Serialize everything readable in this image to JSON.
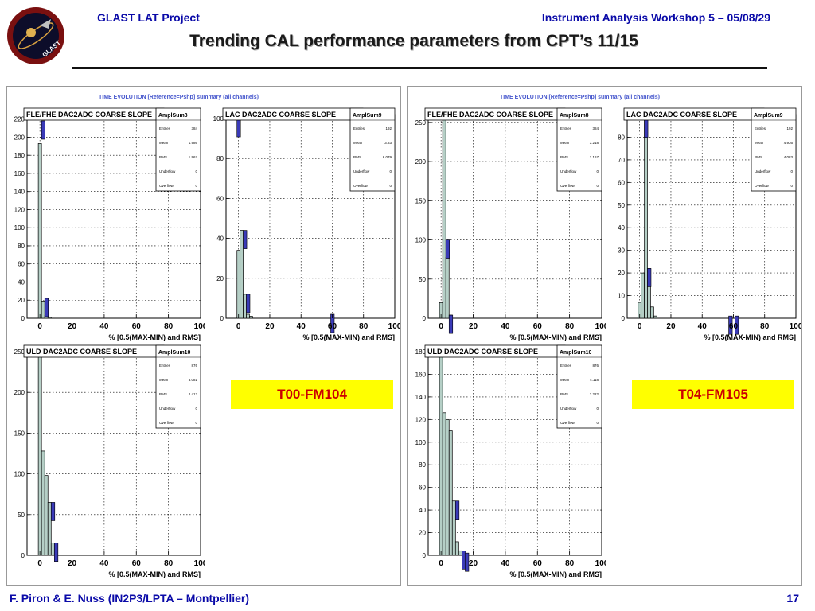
{
  "header": {
    "project": "GLAST LAT Project",
    "workshop": "Instrument Analysis Workshop 5 – 05/08/29",
    "title": "Trending CAL performance parameters from CPT’s 11/15"
  },
  "logo": {
    "name": "glast-logo",
    "text": "GLAST"
  },
  "footer": {
    "authors": "F. Piron & E. Nuss  (IN2P3/LPTA – Montpellier)",
    "page": "17"
  },
  "panels": [
    {
      "pad_title": "TIME EVOLUTION [Reference=Pshp] summary (all channels)"
    },
    {
      "pad_title": "TIME EVOLUTION [Reference=Pshp] summary (all channels)"
    }
  ],
  "labels": [
    "T00-FM104",
    "T04-FM105"
  ],
  "colors": {
    "fill": "#b5cfc6",
    "marker": "#3a3ab8",
    "title": "#0a0aa8",
    "label_bg": "#ffff00",
    "label_text": "#cc0000"
  },
  "chart_data": [
    {
      "type": "bar",
      "title": "FLE/FHE DAC2ADC COARSE SLOPE",
      "xlabel": "% [0.5(MAX-MIN) and RMS]",
      "xlim": [
        -8,
        100
      ],
      "ylim": [
        0,
        225
      ],
      "xticks": [
        0,
        20,
        40,
        60,
        80,
        100
      ],
      "yticks": [
        0,
        20,
        40,
        60,
        80,
        100,
        120,
        140,
        160,
        180,
        200,
        220
      ],
      "bin_width": 2,
      "bin_start": -1,
      "series": [
        {
          "values": [
            193,
            19,
            3,
            1
          ]
        }
      ],
      "markers": [
        {
          "x": 2,
          "y": 218
        },
        {
          "x": 4,
          "y": 22
        }
      ],
      "stats": {
        "name": "AmplSum8",
        "rows": [
          [
            "Entries",
            "384"
          ],
          [
            "Mean",
            "1.986"
          ],
          [
            "RMS",
            "1.967"
          ],
          [
            "Underflow",
            "0"
          ],
          [
            "Overflow",
            "0"
          ]
        ]
      },
      "grid": true
    },
    {
      "type": "bar",
      "title": "LAC DAC2ADC COARSE SLOPE",
      "xlabel": "% [0.5(MAX-MIN) and RMS]",
      "xlim": [
        -8,
        100
      ],
      "ylim": [
        0,
        102
      ],
      "xticks": [
        0,
        20,
        40,
        60,
        80,
        100
      ],
      "yticks": [
        0,
        20,
        40,
        60,
        80,
        100
      ],
      "bin_width": 2,
      "bin_start": -1,
      "series": [
        {
          "values": [
            34,
            44,
            12,
            2,
            1
          ]
        }
      ],
      "markers": [
        {
          "x": 0,
          "y": 100
        },
        {
          "x": 4,
          "y": 44
        },
        {
          "x": 6,
          "y": 12
        },
        {
          "x": 60,
          "y": 2
        }
      ],
      "stats": {
        "name": "AmplSum9",
        "rows": [
          [
            "Entries",
            "192"
          ],
          [
            "Mean",
            "3.83"
          ],
          [
            "RMS",
            "6.079"
          ],
          [
            "Underflow",
            "0"
          ],
          [
            "Overflow",
            "0"
          ]
        ]
      },
      "grid": true
    },
    {
      "type": "bar",
      "title": "ULD DAC2ADC COARSE SLOPE",
      "xlabel": "% [0.5(MAX-MIN) and RMS]",
      "xlim": [
        -8,
        100
      ],
      "ylim": [
        0,
        250
      ],
      "xticks": [
        0,
        20,
        40,
        60,
        80,
        100
      ],
      "yticks": [
        0,
        50,
        100,
        150,
        200,
        250
      ],
      "bin_width": 2,
      "bin_start": -1,
      "series": [
        {
          "values": [
            250,
            128,
            98,
            65,
            15,
            2
          ]
        }
      ],
      "markers": [
        {
          "x": 8,
          "y": 65
        },
        {
          "x": 10,
          "y": 15
        }
      ],
      "stats": {
        "name": "AmplSum10",
        "rows": [
          [
            "Entries",
            "876"
          ],
          [
            "Mean",
            "3.081"
          ],
          [
            "RMS",
            "2.413"
          ],
          [
            "Underflow",
            "0"
          ],
          [
            "Overflow",
            "0"
          ]
        ]
      },
      "grid": true
    },
    {
      "type": "bar",
      "title": "FLE/FHE DAC2ADC COARSE SLOPE",
      "xlabel": "% [0.5(MAX-MIN) and RMS]",
      "xlim": [
        -8,
        100
      ],
      "ylim": [
        0,
        260
      ],
      "xticks": [
        0,
        20,
        40,
        60,
        80,
        100
      ],
      "yticks": [
        0,
        50,
        100,
        150,
        200,
        250
      ],
      "bin_width": 2,
      "bin_start": -1,
      "series": [
        {
          "values": [
            20,
            258,
            78,
            4
          ]
        }
      ],
      "markers": [
        {
          "x": 4,
          "y": 100
        },
        {
          "x": 6,
          "y": 4
        }
      ],
      "stats": {
        "name": "AmplSum8",
        "rows": [
          [
            "Entries",
            "384"
          ],
          [
            "Mean",
            "3.218"
          ],
          [
            "RMS",
            "1.167"
          ],
          [
            "Underflow",
            "0"
          ],
          [
            "Overflow",
            "0"
          ]
        ]
      },
      "grid": true
    },
    {
      "type": "bar",
      "title": "LAC DAC2ADC COARSE SLOPE",
      "xlabel": "% [0.5(MAX-MIN) and RMS]",
      "xlim": [
        -8,
        100
      ],
      "ylim": [
        0,
        90
      ],
      "xticks": [
        0,
        20,
        40,
        60,
        80,
        100
      ],
      "yticks": [
        0,
        10,
        20,
        30,
        40,
        50,
        60,
        70,
        80
      ],
      "bin_width": 2,
      "bin_start": -1,
      "series": [
        {
          "values": [
            7,
            20,
            88,
            22,
            5,
            1
          ]
        }
      ],
      "markers": [
        {
          "x": 4,
          "y": 88
        },
        {
          "x": 6,
          "y": 22
        },
        {
          "x": 58,
          "y": 1
        },
        {
          "x": 62,
          "y": 1
        }
      ],
      "stats": {
        "name": "AmplSum9",
        "rows": [
          [
            "Entries",
            "192"
          ],
          [
            "Mean",
            "4.936"
          ],
          [
            "RMS",
            "4.083"
          ],
          [
            "Underflow",
            "0"
          ],
          [
            "Overflow",
            "0"
          ]
        ]
      },
      "grid": true
    },
    {
      "type": "bar",
      "title": "ULD DAC2ADC COARSE SLOPE",
      "xlabel": "% [0.5(MAX-MIN) and RMS]",
      "xlim": [
        -8,
        100
      ],
      "ylim": [
        0,
        180
      ],
      "xticks": [
        0,
        20,
        40,
        60,
        80,
        100
      ],
      "yticks": [
        0,
        20,
        40,
        60,
        80,
        100,
        120,
        140,
        160,
        180
      ],
      "bin_width": 2,
      "bin_start": -1,
      "series": [
        {
          "values": [
            178,
            126,
            120,
            110,
            48,
            12,
            4,
            2
          ]
        }
      ],
      "markers": [
        {
          "x": 10,
          "y": 48
        },
        {
          "x": 14,
          "y": 4
        },
        {
          "x": 16,
          "y": 2
        }
      ],
      "stats": {
        "name": "AmplSum10",
        "rows": [
          [
            "Entries",
            "876"
          ],
          [
            "Mean",
            "4.118"
          ],
          [
            "RMS",
            "3.222"
          ],
          [
            "Underflow",
            "0"
          ],
          [
            "Overflow",
            "0"
          ]
        ]
      },
      "grid": true
    }
  ]
}
